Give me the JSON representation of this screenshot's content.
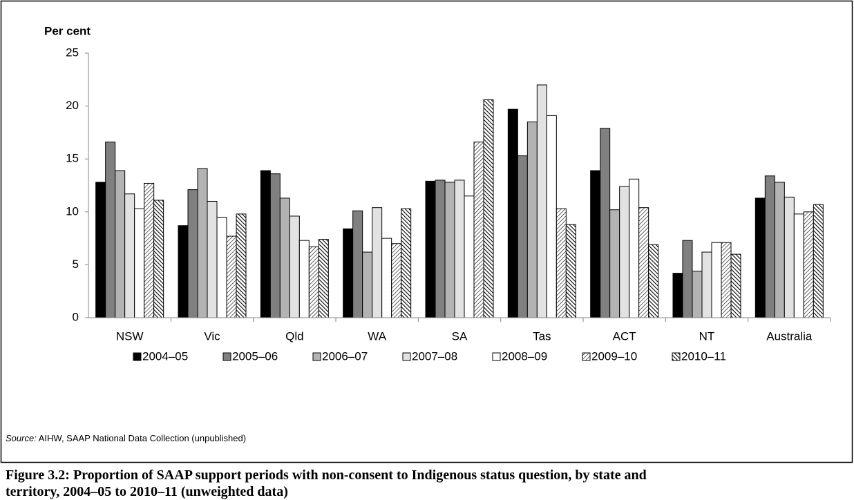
{
  "chart_data": {
    "type": "bar",
    "ylabel": "Per cent",
    "categories": [
      "NSW",
      "Vic",
      "Qld",
      "WA",
      "SA",
      "Tas",
      "ACT",
      "NT",
      "Australia"
    ],
    "series": [
      {
        "name": "2004–05",
        "color": "#000000",
        "values": [
          12.8,
          8.7,
          13.9,
          8.4,
          12.9,
          19.7,
          13.9,
          4.2,
          11.3
        ]
      },
      {
        "name": "2005–06",
        "color": "#808080",
        "values": [
          16.6,
          12.1,
          13.6,
          10.1,
          13.0,
          15.3,
          17.9,
          7.3,
          13.4
        ]
      },
      {
        "name": "2006–07",
        "color": "#b3b3b3",
        "values": [
          13.9,
          14.1,
          11.3,
          6.2,
          12.8,
          18.5,
          10.2,
          4.4,
          12.8
        ]
      },
      {
        "name": "2007–08",
        "color": "#e2e2e2",
        "values": [
          11.7,
          11.0,
          9.6,
          10.4,
          13.0,
          22.0,
          12.4,
          6.2,
          11.4
        ]
      },
      {
        "name": "2008–09",
        "color": "#ffffff",
        "values": [
          10.3,
          9.5,
          7.3,
          7.5,
          11.5,
          19.1,
          13.1,
          7.1,
          9.8
        ]
      },
      {
        "name": "2009–10",
        "color": "#ffffff",
        "pattern": "hatch",
        "values": [
          12.7,
          7.7,
          6.7,
          7.0,
          16.6,
          10.3,
          10.4,
          7.1,
          10.0
        ]
      },
      {
        "name": "2010–11",
        "color": "#ffffff",
        "pattern": "hatch-dense",
        "values": [
          11.1,
          9.8,
          7.4,
          10.3,
          20.6,
          8.8,
          6.9,
          6.0,
          10.7
        ]
      }
    ],
    "ylim": [
      0,
      25
    ],
    "yticks": [
      0,
      5,
      10,
      15,
      20,
      25
    ],
    "grid": false,
    "legend": "bottom"
  },
  "source": {
    "label": "Source:",
    "text": "AIHW, SAAP National Data Collection (unpublished)"
  },
  "caption": "Figure 3.2: Proportion of SAAP support periods with non-consent to Indigenous status question, by state and territory, 2004–05 to 2010–11 (unweighted data)"
}
